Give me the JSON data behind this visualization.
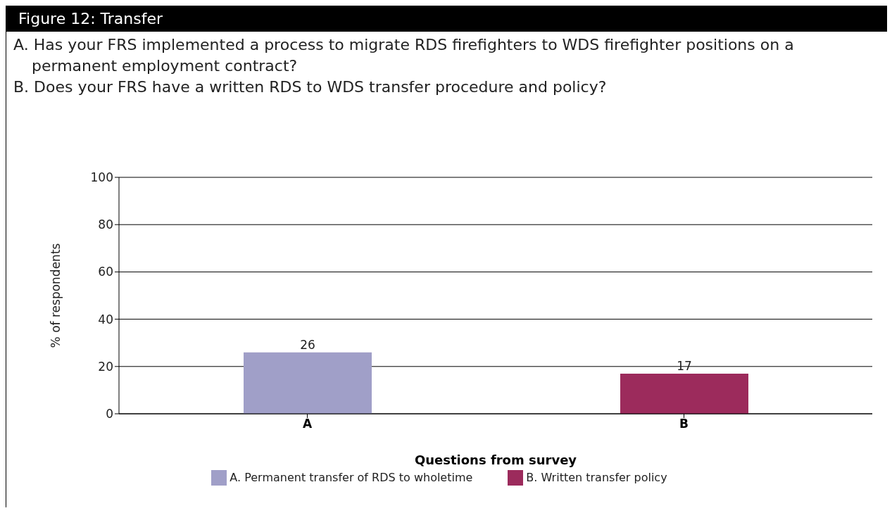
{
  "chart_data": {
    "type": "bar",
    "title": "Figure 12: Transfer",
    "subtitle": "A. Has your FRS implemented a process to migrate RDS firefighters to WDS firefighter positions on a permanent employment contract?\nB. Does your FRS have a written RDS to WDS transfer procedure and policy?",
    "xlabel": "Questions from survey",
    "ylabel": "% of respondents",
    "categories": [
      "A",
      "B"
    ],
    "series": [
      {
        "name": "A. Permanent transfer of RDS to wholetime",
        "color": "#a09fc8",
        "values": [
          26,
          null
        ]
      },
      {
        "name": "B. Written transfer policy",
        "color": "#9c2b5c",
        "values": [
          null,
          17
        ]
      }
    ],
    "stacked": true,
    "ylim": [
      0,
      100
    ],
    "yticks": [
      0,
      20,
      40,
      60,
      80,
      100
    ],
    "grid": "y",
    "data_labels": true,
    "legend": "bottom"
  }
}
